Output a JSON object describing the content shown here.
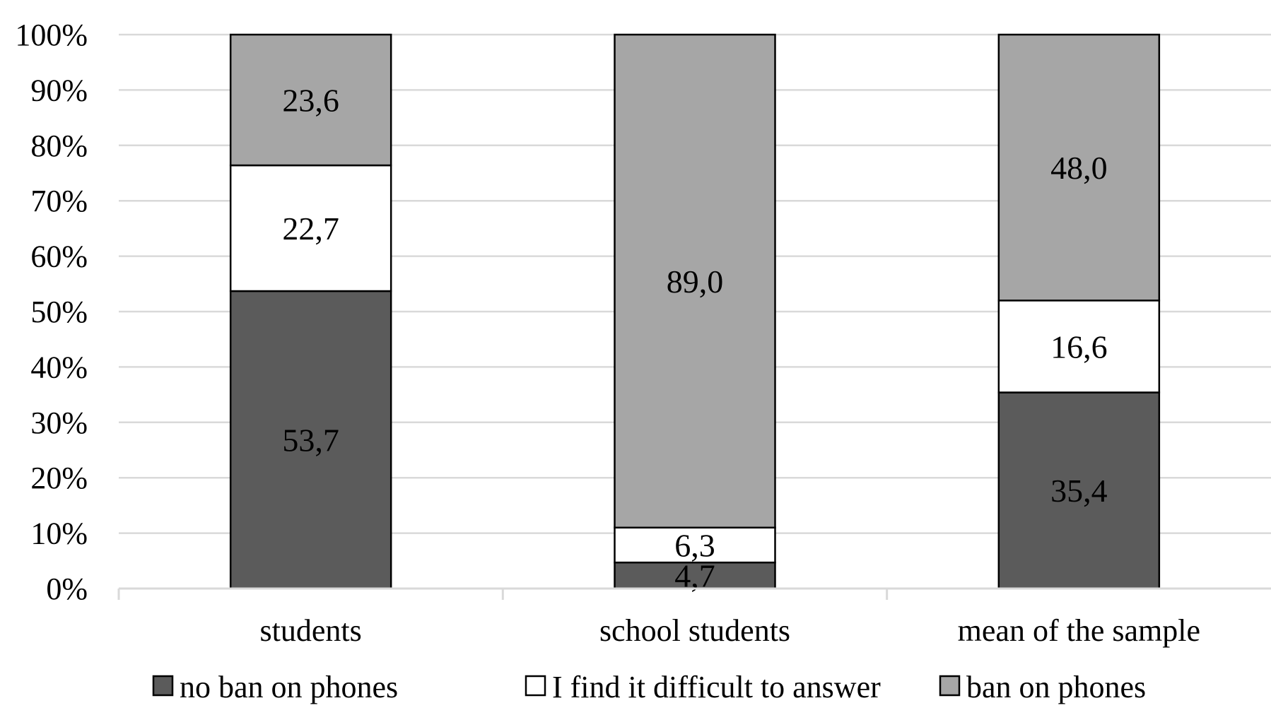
{
  "chart_data": {
    "type": "bar",
    "stacked": true,
    "percent_stacked": true,
    "categories": [
      "students",
      "school students",
      "mean of the sample"
    ],
    "series": [
      {
        "name": "no ban on phones",
        "values": [
          53.7,
          4.7,
          35.4
        ],
        "value_labels": [
          "53,7",
          "4,7",
          "35,4"
        ],
        "color": "#5b5b5b"
      },
      {
        "name": "I find it difficult to answer",
        "values": [
          22.7,
          6.3,
          16.6
        ],
        "value_labels": [
          "22,7",
          "6,3",
          "16,6"
        ],
        "color": "#ffffff"
      },
      {
        "name": "ban on phones",
        "values": [
          23.6,
          89.0,
          48.0
        ],
        "value_labels": [
          "23,6",
          "89,0",
          "48,0"
        ],
        "color": "#a6a6a6"
      }
    ],
    "ylim": [
      0,
      100
    ],
    "y_ticks": [
      "0%",
      "10%",
      "20%",
      "30%",
      "40%",
      "50%",
      "60%",
      "70%",
      "80%",
      "90%",
      "100%"
    ],
    "grid": true,
    "grid_color": "#d9d9d9",
    "legend_position": "bottom",
    "title": "",
    "xlabel": "",
    "ylabel": ""
  }
}
